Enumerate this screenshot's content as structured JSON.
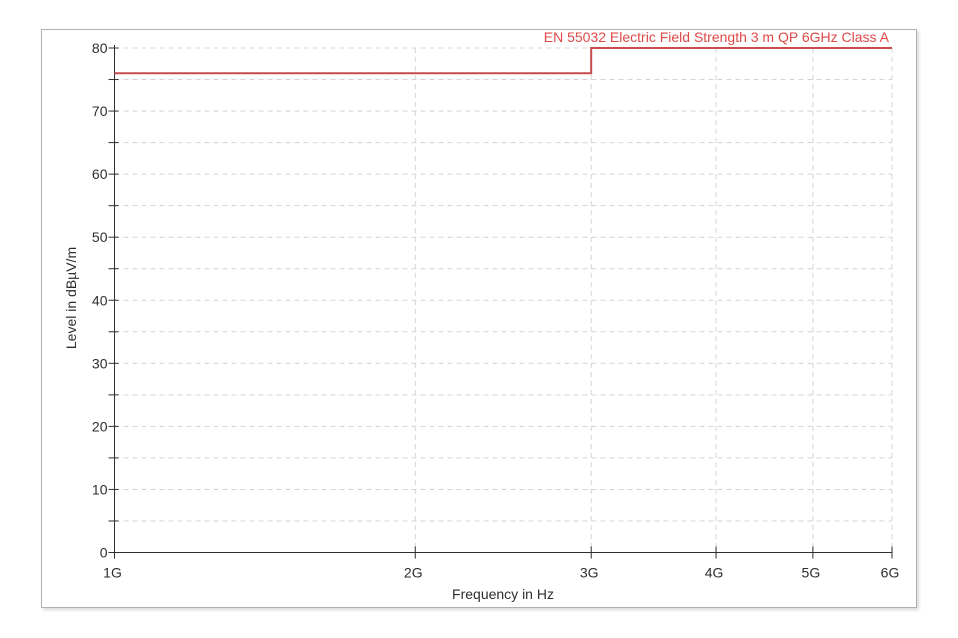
{
  "chart_data": {
    "type": "line",
    "subtype": "step-limit-line",
    "title": "EN 55032 Electric Field Strength 3 m QP 6GHz Class A",
    "xlabel": "Frequency in Hz",
    "ylabel": "Level in dBµV/m",
    "x_scale": "log",
    "xlim_ghz": [
      1,
      6
    ],
    "ylim": [
      0,
      80
    ],
    "y_major_step": 10,
    "y_minor_step": 5,
    "grid": true,
    "grid_style": "dashed",
    "legend_position": "none",
    "x_ticks": [
      {
        "ghz": 1,
        "label": "1G",
        "gridline": false
      },
      {
        "ghz": 2,
        "label": "2G",
        "gridline": true
      },
      {
        "ghz": 3,
        "label": "3G",
        "gridline": true
      },
      {
        "ghz": 4,
        "label": "4G",
        "gridline": true
      },
      {
        "ghz": 5,
        "label": "5G",
        "gridline": true
      },
      {
        "ghz": 6,
        "label": "6G",
        "gridline": true
      }
    ],
    "y_ticks": [
      {
        "value": 0,
        "label": "0"
      },
      {
        "value": 10,
        "label": "10"
      },
      {
        "value": 20,
        "label": "20"
      },
      {
        "value": 30,
        "label": "30"
      },
      {
        "value": 40,
        "label": "40"
      },
      {
        "value": 50,
        "label": "50"
      },
      {
        "value": 60,
        "label": "60"
      },
      {
        "value": 70,
        "label": "70"
      },
      {
        "value": 80,
        "label": "80"
      }
    ],
    "series": [
      {
        "name": "EN 55032 Electric Field Strength 3 m QP 6GHz Class A",
        "color": "#c94b4b",
        "line_width": 2,
        "points": [
          {
            "ghz": 1,
            "level_dbuvm": 76
          },
          {
            "ghz": 3,
            "level_dbuvm": 76
          },
          {
            "ghz": 3,
            "level_dbuvm": 80
          },
          {
            "ghz": 6,
            "level_dbuvm": 80
          }
        ]
      }
    ],
    "colors": {
      "title": "#e04848",
      "axis": "#2e2e2e",
      "tick_label": "#2e2e2e",
      "grid": "#d4d4d4",
      "frame_border": "#b0b0b0",
      "background": "#ffffff"
    }
  }
}
